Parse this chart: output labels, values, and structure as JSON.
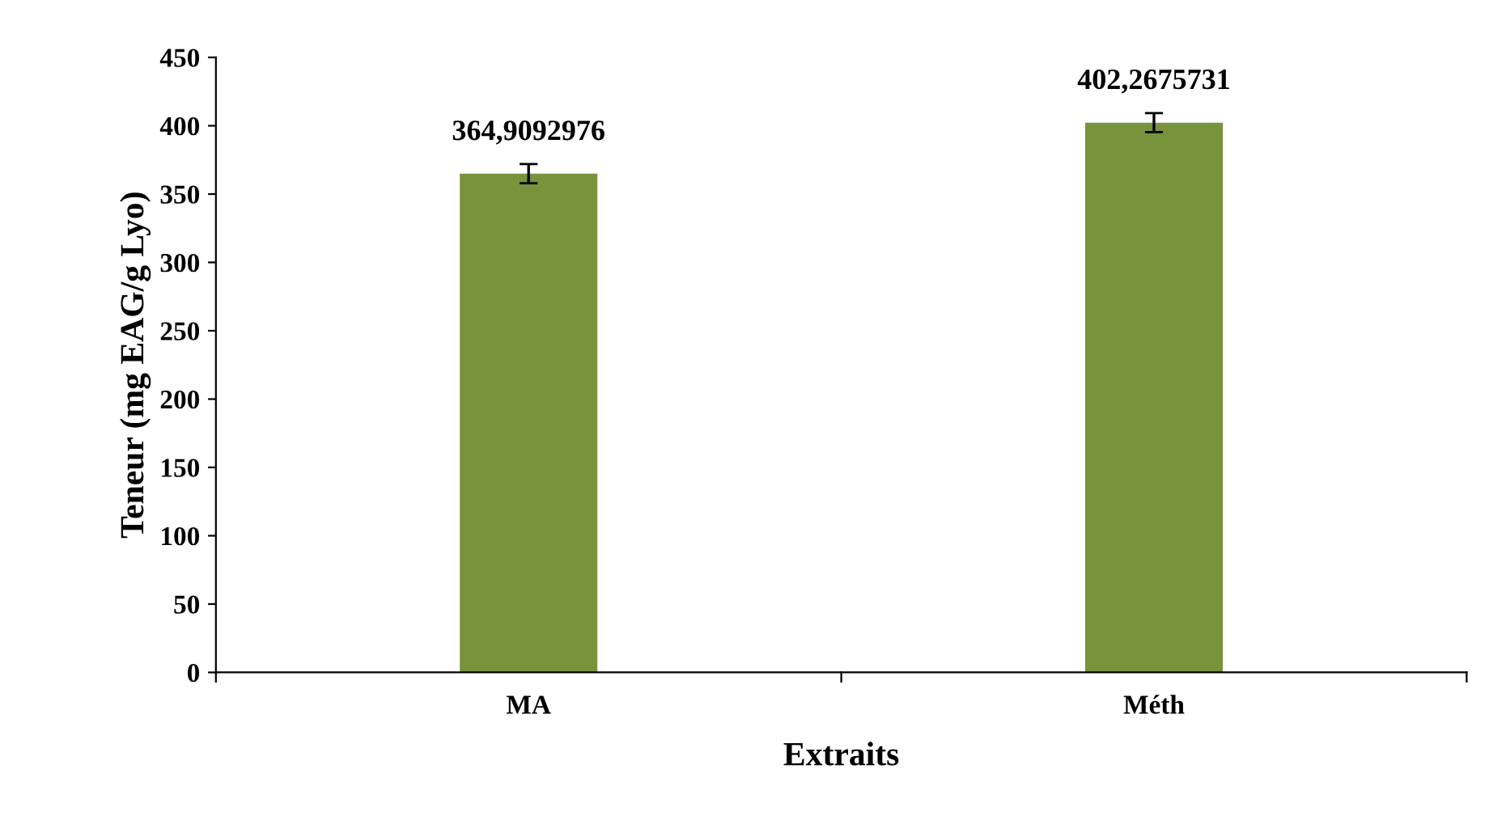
{
  "chart_data": {
    "type": "bar",
    "xlabel": "Extraits",
    "ylabel": "Teneur (mg EAG/g Lyo)",
    "categories": [
      "MA",
      "Méth"
    ],
    "values": [
      364.9092976,
      402.2675731
    ],
    "value_labels": [
      "364,9092976",
      "402,2675731"
    ],
    "errors": [
      7,
      7
    ],
    "color": "#77933c",
    "ylim": [
      0,
      450
    ],
    "yticks": [
      0,
      50,
      100,
      150,
      200,
      250,
      300,
      350,
      400,
      450
    ],
    "grid": false
  }
}
